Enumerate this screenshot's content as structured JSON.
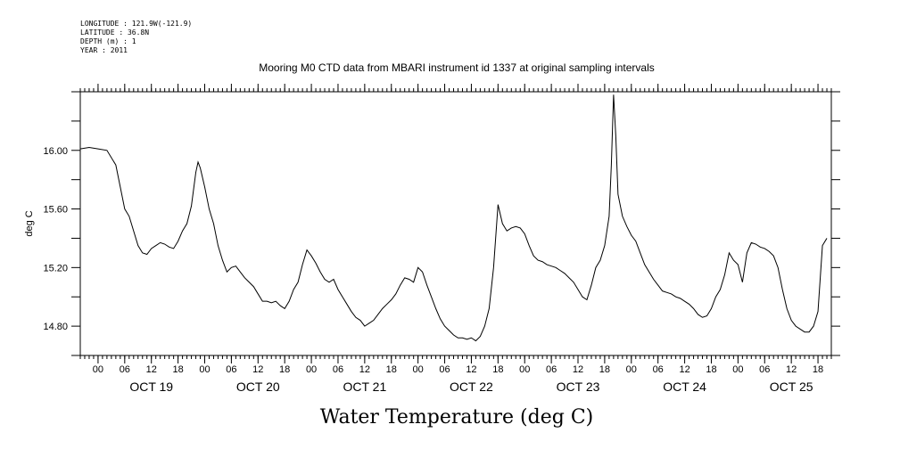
{
  "header": {
    "longitude": "LONGITUDE : 121.9W(-121.9)",
    "latitude": "LATITUDE : 36.8N",
    "depth": "DEPTH (m) : 1",
    "year": "YEAR : 2011"
  },
  "chart_data": {
    "type": "line",
    "title": "Mooring M0 CTD data from MBARI instrument id 1337 at original sampling intervals",
    "xlabel": "Water Temperature (deg C)",
    "ylabel": "deg C",
    "ylim": [
      14.6,
      16.4
    ],
    "xlim": [
      "2011-10-18T20:00",
      "2011-10-25T21:00"
    ],
    "yticks": [
      {
        "value": 14.8,
        "label": "14.80"
      },
      {
        "value": 15.2,
        "label": "15.20"
      },
      {
        "value": 15.6,
        "label": "15.60"
      },
      {
        "value": 16.0,
        "label": "16.00"
      }
    ],
    "hour_ticks": [
      {
        "t": "2011-10-19T00:00",
        "label": "00"
      },
      {
        "t": "2011-10-19T06:00",
        "label": "06"
      },
      {
        "t": "2011-10-19T12:00",
        "label": "12"
      },
      {
        "t": "2011-10-19T18:00",
        "label": "18"
      },
      {
        "t": "2011-10-20T00:00",
        "label": "00"
      },
      {
        "t": "2011-10-20T06:00",
        "label": "06"
      },
      {
        "t": "2011-10-20T12:00",
        "label": "12"
      },
      {
        "t": "2011-10-20T18:00",
        "label": "18"
      },
      {
        "t": "2011-10-21T00:00",
        "label": "00"
      },
      {
        "t": "2011-10-21T06:00",
        "label": "06"
      },
      {
        "t": "2011-10-21T12:00",
        "label": "12"
      },
      {
        "t": "2011-10-21T18:00",
        "label": "18"
      },
      {
        "t": "2011-10-22T00:00",
        "label": "00"
      },
      {
        "t": "2011-10-22T06:00",
        "label": "06"
      },
      {
        "t": "2011-10-22T12:00",
        "label": "12"
      },
      {
        "t": "2011-10-22T18:00",
        "label": "18"
      },
      {
        "t": "2011-10-23T00:00",
        "label": "00"
      },
      {
        "t": "2011-10-23T06:00",
        "label": "06"
      },
      {
        "t": "2011-10-23T12:00",
        "label": "12"
      },
      {
        "t": "2011-10-23T18:00",
        "label": "18"
      },
      {
        "t": "2011-10-24T00:00",
        "label": "00"
      },
      {
        "t": "2011-10-24T06:00",
        "label": "06"
      },
      {
        "t": "2011-10-24T12:00",
        "label": "12"
      },
      {
        "t": "2011-10-24T18:00",
        "label": "18"
      },
      {
        "t": "2011-10-25T00:00",
        "label": "00"
      },
      {
        "t": "2011-10-25T06:00",
        "label": "06"
      },
      {
        "t": "2011-10-25T12:00",
        "label": "12"
      },
      {
        "t": "2011-10-25T18:00",
        "label": "18"
      }
    ],
    "day_labels": [
      {
        "t": "2011-10-19T12:00",
        "label": "OCT 19"
      },
      {
        "t": "2011-10-20T12:00",
        "label": "OCT 20"
      },
      {
        "t": "2011-10-21T12:00",
        "label": "OCT 21"
      },
      {
        "t": "2011-10-22T12:00",
        "label": "OCT 22"
      },
      {
        "t": "2011-10-23T12:00",
        "label": "OCT 23"
      },
      {
        "t": "2011-10-24T12:00",
        "label": "OCT 24"
      },
      {
        "t": "2011-10-25T12:00",
        "label": "OCT 25"
      }
    ],
    "series": [
      {
        "color": "#000000",
        "points": [
          [
            "2011-10-18T20:00",
            16.01
          ],
          [
            "2011-10-18T22:00",
            16.02
          ],
          [
            "2011-10-19T00:00",
            16.01
          ],
          [
            "2011-10-19T02:00",
            16.0
          ],
          [
            "2011-10-19T04:00",
            15.9
          ],
          [
            "2011-10-19T05:00",
            15.75
          ],
          [
            "2011-10-19T06:00",
            15.6
          ],
          [
            "2011-10-19T07:00",
            15.55
          ],
          [
            "2011-10-19T08:00",
            15.45
          ],
          [
            "2011-10-19T09:00",
            15.35
          ],
          [
            "2011-10-19T10:00",
            15.3
          ],
          [
            "2011-10-19T11:00",
            15.29
          ],
          [
            "2011-10-19T12:00",
            15.33
          ],
          [
            "2011-10-19T13:00",
            15.35
          ],
          [
            "2011-10-19T14:00",
            15.37
          ],
          [
            "2011-10-19T15:00",
            15.36
          ],
          [
            "2011-10-19T16:00",
            15.34
          ],
          [
            "2011-10-19T17:00",
            15.33
          ],
          [
            "2011-10-19T18:00",
            15.38
          ],
          [
            "2011-10-19T19:00",
            15.45
          ],
          [
            "2011-10-19T20:00",
            15.5
          ],
          [
            "2011-10-19T21:00",
            15.62
          ],
          [
            "2011-10-19T22:00",
            15.85
          ],
          [
            "2011-10-19T22:30",
            15.92
          ],
          [
            "2011-10-19T23:00",
            15.88
          ],
          [
            "2011-10-20T00:00",
            15.75
          ],
          [
            "2011-10-20T01:00",
            15.6
          ],
          [
            "2011-10-20T02:00",
            15.5
          ],
          [
            "2011-10-20T03:00",
            15.35
          ],
          [
            "2011-10-20T04:00",
            15.25
          ],
          [
            "2011-10-20T05:00",
            15.17
          ],
          [
            "2011-10-20T06:00",
            15.2
          ],
          [
            "2011-10-20T07:00",
            15.21
          ],
          [
            "2011-10-20T08:00",
            15.17
          ],
          [
            "2011-10-20T09:00",
            15.13
          ],
          [
            "2011-10-20T10:00",
            15.1
          ],
          [
            "2011-10-20T11:00",
            15.07
          ],
          [
            "2011-10-20T12:00",
            15.02
          ],
          [
            "2011-10-20T13:00",
            14.97
          ],
          [
            "2011-10-20T14:00",
            14.97
          ],
          [
            "2011-10-20T15:00",
            14.96
          ],
          [
            "2011-10-20T16:00",
            14.97
          ],
          [
            "2011-10-20T17:00",
            14.94
          ],
          [
            "2011-10-20T18:00",
            14.92
          ],
          [
            "2011-10-20T19:00",
            14.97
          ],
          [
            "2011-10-20T20:00",
            15.05
          ],
          [
            "2011-10-20T21:00",
            15.1
          ],
          [
            "2011-10-20T22:00",
            15.22
          ],
          [
            "2011-10-20T23:00",
            15.32
          ],
          [
            "2011-10-21T00:00",
            15.28
          ],
          [
            "2011-10-21T01:00",
            15.23
          ],
          [
            "2011-10-21T02:00",
            15.17
          ],
          [
            "2011-10-21T03:00",
            15.12
          ],
          [
            "2011-10-21T04:00",
            15.1
          ],
          [
            "2011-10-21T05:00",
            15.12
          ],
          [
            "2011-10-21T06:00",
            15.05
          ],
          [
            "2011-10-21T07:00",
            15.0
          ],
          [
            "2011-10-21T08:00",
            14.95
          ],
          [
            "2011-10-21T09:00",
            14.9
          ],
          [
            "2011-10-21T10:00",
            14.86
          ],
          [
            "2011-10-21T11:00",
            14.84
          ],
          [
            "2011-10-21T12:00",
            14.8
          ],
          [
            "2011-10-21T13:00",
            14.82
          ],
          [
            "2011-10-21T14:00",
            14.84
          ],
          [
            "2011-10-21T15:00",
            14.88
          ],
          [
            "2011-10-21T16:00",
            14.92
          ],
          [
            "2011-10-21T17:00",
            14.95
          ],
          [
            "2011-10-21T18:00",
            14.98
          ],
          [
            "2011-10-21T19:00",
            15.02
          ],
          [
            "2011-10-21T20:00",
            15.08
          ],
          [
            "2011-10-21T21:00",
            15.13
          ],
          [
            "2011-10-21T22:00",
            15.12
          ],
          [
            "2011-10-21T23:00",
            15.1
          ],
          [
            "2011-10-22T00:00",
            15.2
          ],
          [
            "2011-10-22T01:00",
            15.17
          ],
          [
            "2011-10-22T02:00",
            15.08
          ],
          [
            "2011-10-22T03:00",
            15.0
          ],
          [
            "2011-10-22T04:00",
            14.92
          ],
          [
            "2011-10-22T05:00",
            14.85
          ],
          [
            "2011-10-22T06:00",
            14.8
          ],
          [
            "2011-10-22T07:00",
            14.77
          ],
          [
            "2011-10-22T08:00",
            14.74
          ],
          [
            "2011-10-22T09:00",
            14.72
          ],
          [
            "2011-10-22T10:00",
            14.72
          ],
          [
            "2011-10-22T11:00",
            14.71
          ],
          [
            "2011-10-22T12:00",
            14.72
          ],
          [
            "2011-10-22T13:00",
            14.7
          ],
          [
            "2011-10-22T14:00",
            14.73
          ],
          [
            "2011-10-22T15:00",
            14.8
          ],
          [
            "2011-10-22T16:00",
            14.92
          ],
          [
            "2011-10-22T17:00",
            15.2
          ],
          [
            "2011-10-22T18:00",
            15.63
          ],
          [
            "2011-10-22T19:00",
            15.5
          ],
          [
            "2011-10-22T20:00",
            15.45
          ],
          [
            "2011-10-22T21:00",
            15.47
          ],
          [
            "2011-10-22T22:00",
            15.48
          ],
          [
            "2011-10-22T23:00",
            15.47
          ],
          [
            "2011-10-23T00:00",
            15.43
          ],
          [
            "2011-10-23T01:00",
            15.35
          ],
          [
            "2011-10-23T02:00",
            15.28
          ],
          [
            "2011-10-23T03:00",
            15.25
          ],
          [
            "2011-10-23T04:00",
            15.24
          ],
          [
            "2011-10-23T05:00",
            15.22
          ],
          [
            "2011-10-23T06:00",
            15.21
          ],
          [
            "2011-10-23T07:00",
            15.2
          ],
          [
            "2011-10-23T08:00",
            15.18
          ],
          [
            "2011-10-23T09:00",
            15.16
          ],
          [
            "2011-10-23T10:00",
            15.13
          ],
          [
            "2011-10-23T11:00",
            15.1
          ],
          [
            "2011-10-23T12:00",
            15.05
          ],
          [
            "2011-10-23T13:00",
            15.0
          ],
          [
            "2011-10-23T14:00",
            14.98
          ],
          [
            "2011-10-23T15:00",
            15.08
          ],
          [
            "2011-10-23T16:00",
            15.2
          ],
          [
            "2011-10-23T17:00",
            15.25
          ],
          [
            "2011-10-23T18:00",
            15.35
          ],
          [
            "2011-10-23T19:00",
            15.55
          ],
          [
            "2011-10-23T19:30",
            15.9
          ],
          [
            "2011-10-23T20:00",
            16.38
          ],
          [
            "2011-10-23T20:30",
            16.1
          ],
          [
            "2011-10-23T21:00",
            15.7
          ],
          [
            "2011-10-23T22:00",
            15.55
          ],
          [
            "2011-10-23T23:00",
            15.48
          ],
          [
            "2011-10-24T00:00",
            15.42
          ],
          [
            "2011-10-24T01:00",
            15.38
          ],
          [
            "2011-10-24T02:00",
            15.3
          ],
          [
            "2011-10-24T03:00",
            15.22
          ],
          [
            "2011-10-24T04:00",
            15.17
          ],
          [
            "2011-10-24T05:00",
            15.12
          ],
          [
            "2011-10-24T06:00",
            15.08
          ],
          [
            "2011-10-24T07:00",
            15.04
          ],
          [
            "2011-10-24T08:00",
            15.03
          ],
          [
            "2011-10-24T09:00",
            15.02
          ],
          [
            "2011-10-24T10:00",
            15.0
          ],
          [
            "2011-10-24T11:00",
            14.99
          ],
          [
            "2011-10-24T12:00",
            14.97
          ],
          [
            "2011-10-24T13:00",
            14.95
          ],
          [
            "2011-10-24T14:00",
            14.92
          ],
          [
            "2011-10-24T15:00",
            14.88
          ],
          [
            "2011-10-24T16:00",
            14.86
          ],
          [
            "2011-10-24T17:00",
            14.87
          ],
          [
            "2011-10-24T18:00",
            14.92
          ],
          [
            "2011-10-24T19:00",
            15.0
          ],
          [
            "2011-10-24T20:00",
            15.05
          ],
          [
            "2011-10-24T21:00",
            15.15
          ],
          [
            "2011-10-24T22:00",
            15.3
          ],
          [
            "2011-10-24T23:00",
            15.25
          ],
          [
            "2011-10-25T00:00",
            15.22
          ],
          [
            "2011-10-25T01:00",
            15.1
          ],
          [
            "2011-10-25T02:00",
            15.3
          ],
          [
            "2011-10-25T03:00",
            15.37
          ],
          [
            "2011-10-25T04:00",
            15.36
          ],
          [
            "2011-10-25T05:00",
            15.34
          ],
          [
            "2011-10-25T06:00",
            15.33
          ],
          [
            "2011-10-25T07:00",
            15.31
          ],
          [
            "2011-10-25T08:00",
            15.28
          ],
          [
            "2011-10-25T09:00",
            15.2
          ],
          [
            "2011-10-25T10:00",
            15.05
          ],
          [
            "2011-10-25T11:00",
            14.92
          ],
          [
            "2011-10-25T12:00",
            14.84
          ],
          [
            "2011-10-25T13:00",
            14.8
          ],
          [
            "2011-10-25T14:00",
            14.78
          ],
          [
            "2011-10-25T15:00",
            14.76
          ],
          [
            "2011-10-25T16:00",
            14.76
          ],
          [
            "2011-10-25T17:00",
            14.8
          ],
          [
            "2011-10-25T18:00",
            14.9
          ],
          [
            "2011-10-25T19:00",
            15.35
          ],
          [
            "2011-10-25T20:00",
            15.4
          ]
        ]
      }
    ]
  }
}
